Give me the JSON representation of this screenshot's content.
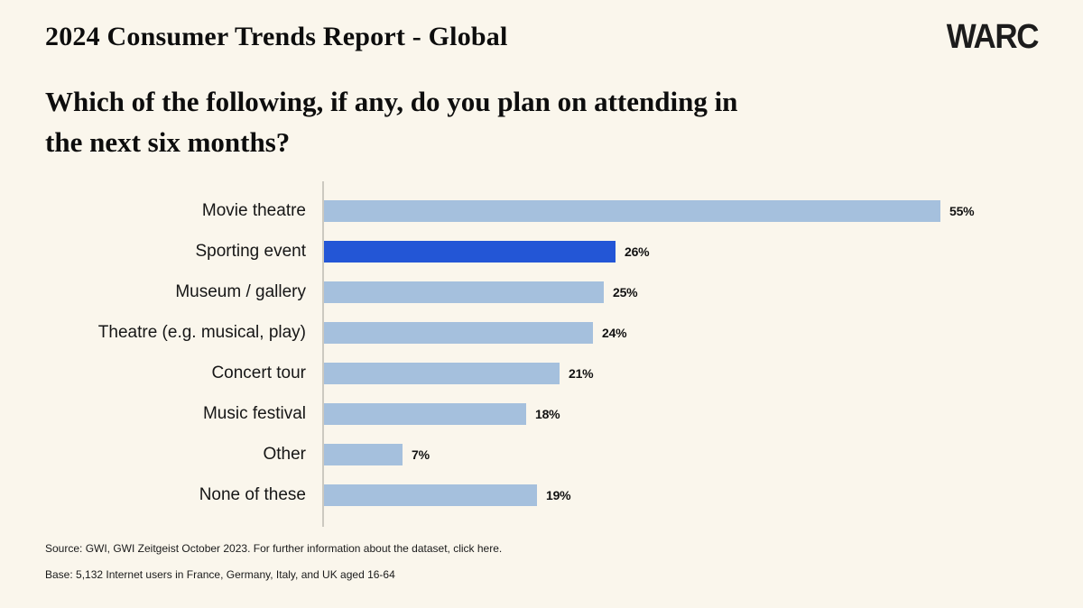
{
  "header": {
    "title": "2024 Consumer Trends Report - Global",
    "logo": "WARC"
  },
  "question": {
    "line1": "Which of the following, if any, do you plan on attending in",
    "line2": "the next six months?"
  },
  "chart_data": {
    "type": "bar",
    "orientation": "horizontal",
    "categories": [
      "Movie theatre",
      "Sporting event",
      "Museum / gallery",
      "Theatre (e.g. musical, play)",
      "Concert tour",
      "Music festival",
      "Other",
      "None of these"
    ],
    "values": [
      55,
      26,
      25,
      24,
      21,
      18,
      7,
      19
    ],
    "value_labels": [
      "55%",
      "26%",
      "25%",
      "24%",
      "21%",
      "18%",
      "7%",
      "19%"
    ],
    "highlighted_index": 1,
    "highlighted_category": "Sporting event",
    "xlim": [
      0,
      68
    ],
    "unit": "%",
    "grid": false,
    "legend": false,
    "colors": {
      "bar": "#a5c0dd",
      "highlight": "#2356d6"
    }
  },
  "footer": {
    "source_prefix": "Source: GWI, GWI Zeitgeist October 2023. For further information about the dataset, ",
    "source_link": "click here",
    "source_suffix": ".",
    "base": "Base: 5,132 Internet users in France, Germany, Italy, and UK aged 16-64"
  },
  "theme": {
    "background": "#faf6ec",
    "text": "#111111",
    "axis": "#ccc9c0"
  }
}
